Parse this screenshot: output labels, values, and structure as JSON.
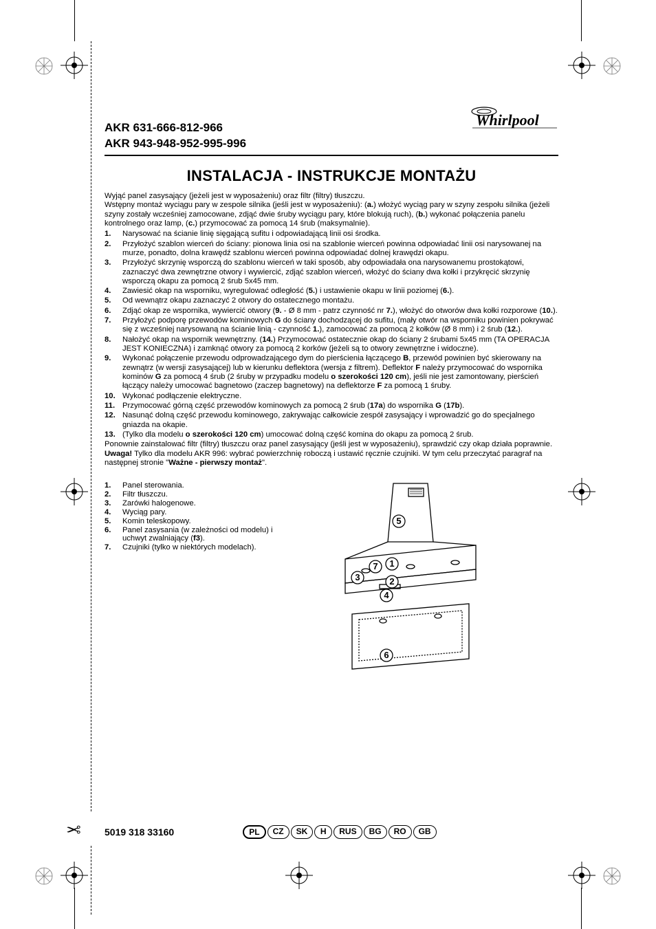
{
  "print_marks": {
    "color": "#000000"
  },
  "header": {
    "model_line1": "AKR 631-666-812-966",
    "model_line2": "AKR 943-948-952-995-996",
    "brand": "Whirlpool"
  },
  "title": "INSTALACJA - INSTRUKCJE MONTAŻU",
  "intro": {
    "p1": "Wyjąć panel zasysający (jeżeli jest w wyposażeniu) oraz filtr (filtry) tłuszczu.",
    "p2_pre": "Wstępny montaż wyciągu pary w zespole silnika (jeśli jest w wyposażeniu): (",
    "p2_a": "a.",
    "p2_mid1": ") włożyć wyciąg pary w szyny zespołu silnika (jeżeli szyny zostały wcześniej zamocowane, zdjąć dwie śruby wyciągu pary, które blokują ruch), (",
    "p2_b": "b.",
    "p2_mid2": ") wykonać połączenia panelu kontrolnego oraz lamp, (",
    "p2_c": "c.",
    "p2_end": ") przymocować za pomocą 14 śrub (maksymalnie)."
  },
  "steps": [
    {
      "n": "1.",
      "t": "Narysować na ścianie linię sięgającą sufitu i odpowiadającą linii osi środka."
    },
    {
      "n": "2.",
      "t": "Przyłożyć szablon wierceń do ściany: pionowa linia osi na szablonie wierceń powinna odpowiadać linii osi narysowanej na murze, ponadto, dolna krawędź szablonu wierceń powinna odpowiadać dolnej krawędzi okapu."
    },
    {
      "n": "3.",
      "t": "Przyłożyć skrzynię wsporczą do szablonu wierceń w taki sposób, aby odpowiadała ona narysowanemu prostokątowi, zaznaczyć dwa zewnętrzne otwory i wywiercić, zdjąć szablon wierceń, włożyć do ściany dwa kołki i przykręcić skrzynię wsporczą okapu za pomocą 2  śrub 5x45 mm."
    },
    {
      "n": "4.",
      "t_html": "Zawiesić okap na wsporniku, wyregulować odległość (<b>5.</b>) i ustawienie okapu w linii poziomej (<b>6.</b>)."
    },
    {
      "n": "5.",
      "t": "Od wewnątrz okapu zaznaczyć 2 otwory do ostatecznego montażu."
    },
    {
      "n": "6.",
      "t_html": "Zdjąć okap ze wspornika, wywiercić otwory (<b>9.</b> - Ø 8 mm - patrz czynność nr <b>7.</b>), włożyć do otworów dwa kołki rozporowe (<b>10.</b>)."
    },
    {
      "n": "7.",
      "t_html": "Przyłożyć podporę przewodów kominowych <b>G</b> do ściany dochodzącej do sufitu, (mały otwór na wsporniku powinien pokrywać się z wcześniej narysowaną na ścianie linią - czynność <b>1.</b>), zamocować za pomocą 2 kołków (Ø 8 mm) i 2 śrub (<b>12.</b>)."
    },
    {
      "n": "8.",
      "t_html": "Nałożyć okap na wspornik wewnętrzny. (<b>14.</b>) Przymocować ostatecznie okap do ściany 2 śrubami 5x45 mm (TA OPERACJA JEST KONIECZNA) i zamknąć otwory za pomocą 2 korków (jeżeli są to otwory zewnętrzne i widoczne)."
    },
    {
      "n": "9.",
      "t_html": "Wykonać połączenie przewodu odprowadzającego dym do pierścienia łączącego <b>B</b>, przewód powinien być skierowany na zewnątrz (w wersji zasysającej) lub w kierunku deflektora (wersja z filtrem). Deflektor <b>F</b> należy przymocować do wspornika kominów <b>G</b> za pomocą 4 śrub (2 śruby w przypadku modelu <b>o szerokości 120 cm</b>), jeśli nie jest zamontowany, pierścień łączący należy umocować bagnetowo (zaczep bagnetowy) na deflektorze <b>F</b> za pomocą 1 śruby."
    },
    {
      "n": "10.",
      "t": "Wykonać podłączenie elektryczne."
    },
    {
      "n": "11.",
      "t_html": "Przymocować górną część przewodów kominowych za pomocą 2 śrub (<b>17a</b>) do wspornika <b>G</b> (<b>17b</b>)."
    },
    {
      "n": "12.",
      "t": "Nasunąć dolną część przewodu kominowego, zakrywając całkowicie zespół zasysający i wprowadzić go do specjalnego gniazda na okapie."
    },
    {
      "n": "13.",
      "t_html": "(Tylko dla modelu <b>o szerokości 120 cm</b>) umocować dolną część komina do okapu za pomocą 2 śrub."
    }
  ],
  "outro": {
    "p1": "Ponownie zainstalować filtr (filtry) tłuszczu oraz panel zasysający (jeśli jest w wyposażeniu), sprawdzić czy okap działa poprawnie.",
    "p2_b": "Uwaga!",
    "p2_rest": " Tylko dla modelu AKR 996: wybrać powierzchnię roboczą i ustawić ręcznie czujniki. W tym celu przeczytać paragraf na następnej stronie \"",
    "p2_ref": "Ważne - pierwszy montaż",
    "p2_end": "\"."
  },
  "legend": [
    {
      "n": "1.",
      "t": "Panel sterowania."
    },
    {
      "n": "2.",
      "t": "Filtr tłuszczu."
    },
    {
      "n": "3.",
      "t": "Zarówki halogenowe."
    },
    {
      "n": "4.",
      "t": "Wyciąg pary."
    },
    {
      "n": "5.",
      "t": "Komin teleskopowy."
    },
    {
      "n": "6.",
      "t_html": "Panel zasysania (w zależności od modelu) i uchwyt zwalniający (<b>f3</b>)."
    },
    {
      "n": "7.",
      "t": "Czujniki (tylko w niektórych modelach)."
    }
  ],
  "diagram": {
    "callouts": [
      "1",
      "2",
      "3",
      "4",
      "5",
      "6",
      "7"
    ]
  },
  "footer": {
    "doc_number": "5019 318 33160",
    "languages": [
      "PL",
      "CZ",
      "SK",
      "H",
      "RUS",
      "BG",
      "RO",
      "GB"
    ],
    "active_lang": "PL"
  }
}
